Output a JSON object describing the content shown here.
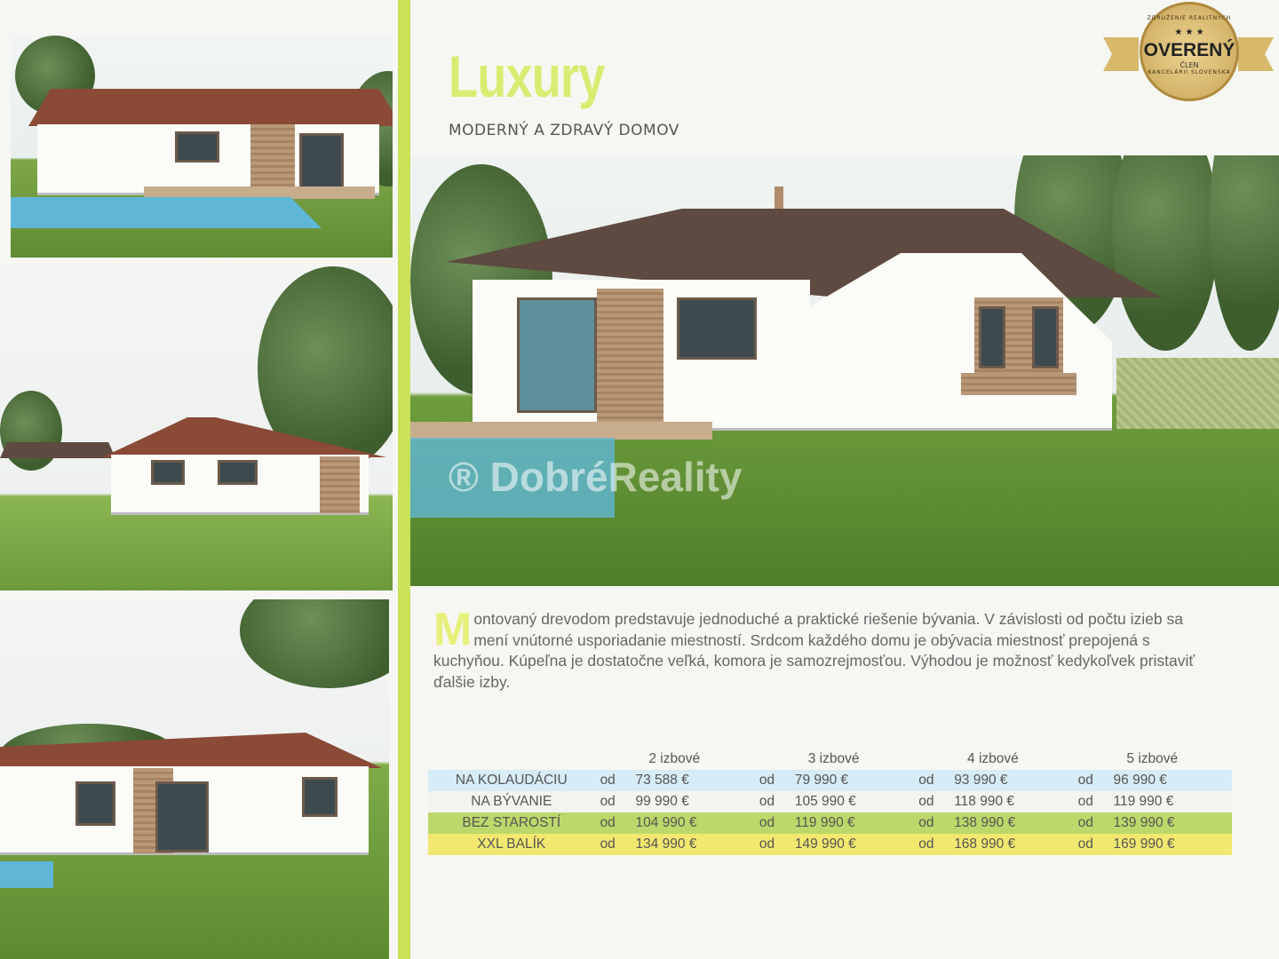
{
  "brochure": {
    "title": "Luxury",
    "subtitle": "MODERNÝ A ZDRAVÝ DOMOV",
    "description_dropcap": "M",
    "description": "ontovaný drevodom predstavuje jednoduché a praktické riešenie bývania. V závislosti od  počtu izieb sa mení vnútorné usporiadanie miestností. Srdcom každého domu je obývacia miestnosť prepojená s kuchyňou. Kúpeľna je dostatočne veľká, komora je samozrejmosťou. Výhodou je možnosť kedykoľvek pristaviť ďalšie izby."
  },
  "watermark": "® DobréReality",
  "badge": {
    "top_text": "ZDRUŽENIE REALITNÝCH",
    "stars": "★ ★ ★",
    "main": "OVERENÝ",
    "sub": "ČLEN",
    "bottom_text": "KANCELÁRIÍ SLOVENSKA"
  },
  "price_table": {
    "columns": [
      "",
      "2 izbové",
      "3 izbové",
      "4 izbové",
      "5 izbové"
    ],
    "prefix": "od",
    "rows": [
      {
        "label": "NA KOLAUDÁCIU",
        "prices": [
          "73 588 €",
          "79 990 €",
          "93 990 €",
          "96 990 €"
        ],
        "color": "#d6ecf6"
      },
      {
        "label": "NA BÝVANIE",
        "prices": [
          "99 990 €",
          "105 990 €",
          "118 990 €",
          "119 990 €"
        ],
        "color": "#f3f4f0"
      },
      {
        "label": "BEZ STAROSTÍ",
        "prices": [
          "104 990 €",
          "119 990 €",
          "138 990 €",
          "139 990 €"
        ],
        "color": "#bcd86a"
      },
      {
        "label": "XXL BALÍK",
        "prices": [
          "134 990 €",
          "149 990 €",
          "168 990 €",
          "169 990 €"
        ],
        "color": "#f2e870"
      }
    ]
  },
  "colors": {
    "accent": "#c9e25a",
    "title": "#d9ec72"
  }
}
